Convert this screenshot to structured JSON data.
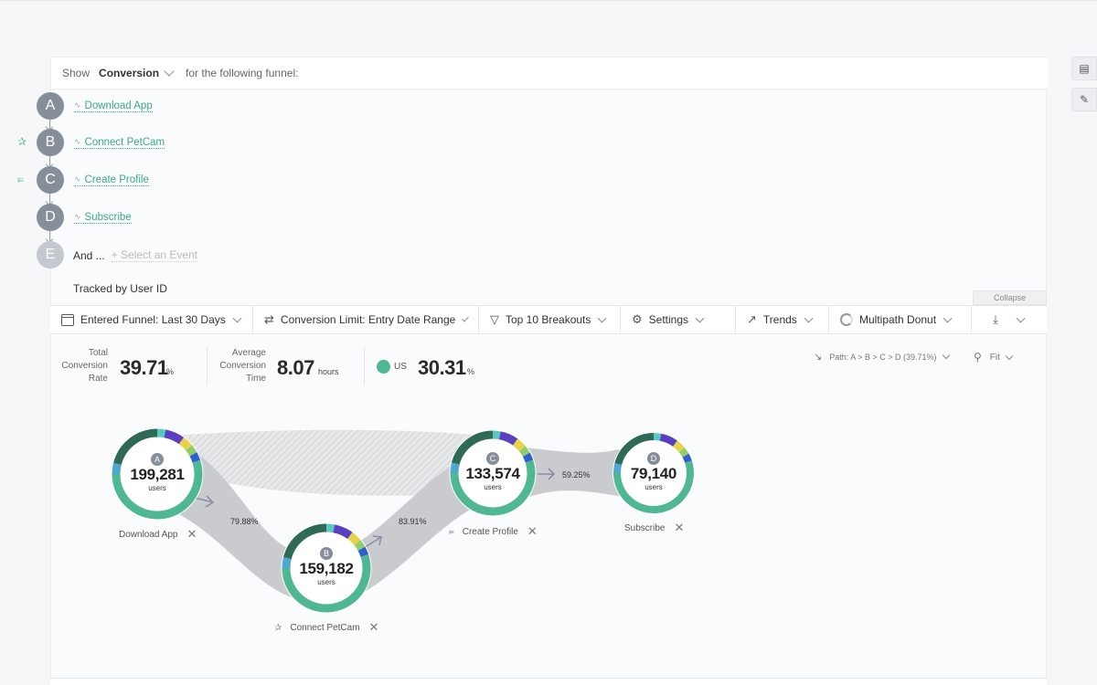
{
  "header": {
    "show_label": "Show",
    "metric": "Conversion",
    "tail": "for the following funnel:"
  },
  "steps": [
    {
      "letter": "A",
      "event": "Download App"
    },
    {
      "letter": "B",
      "event": "Connect PetCam"
    },
    {
      "letter": "C",
      "event": "Create Profile"
    },
    {
      "letter": "D",
      "event": "Subscribe"
    },
    {
      "letter": "E",
      "event": ""
    }
  ],
  "and_label": "And ...",
  "select_event": "+ Select an Event",
  "tracked_by": "Tracked by User ID",
  "collapse": "Collapse",
  "toolbar": {
    "date_range": "Entered Funnel: Last 30 Days",
    "conversion_limit": "Conversion Limit: Entry Date Range",
    "breakouts": "Top 10 Breakouts",
    "settings": "Settings",
    "trends": "Trends",
    "view": "Multipath Donut"
  },
  "stats": {
    "total_label": [
      "Total",
      "Conversion",
      "Rate"
    ],
    "total_value": "39.71",
    "total_unit": "%",
    "avg_label": [
      "Average",
      "Conversion",
      "Time"
    ],
    "avg_value": "8.07",
    "avg_unit": "hours",
    "segment_label": "US",
    "segment_value": "30.31",
    "segment_unit": "%",
    "segment_color": "#4fb892"
  },
  "path_control": "Path: A > B > C > D (39.71%)",
  "fit_control": "Fit",
  "nodes": [
    {
      "letter": "A",
      "users": "199,281",
      "unit": "users",
      "label": "Download App"
    },
    {
      "letter": "B",
      "users": "159,182",
      "unit": "users",
      "label": "Connect PetCam"
    },
    {
      "letter": "C",
      "users": "133,574",
      "unit": "users",
      "label": "Create Profile"
    },
    {
      "letter": "D",
      "users": "79,140",
      "unit": "users",
      "label": "Subscribe"
    }
  ],
  "conversions": [
    "79.88%",
    "83.91%",
    "59.25%"
  ],
  "colors": {
    "accent_green": "#4fb892",
    "dark_green": "#2e6a55",
    "purple": "#5a3fc0",
    "yellow": "#e8d24a",
    "blue": "#2f5fd0",
    "teal": "#5bc8c0",
    "step_gray": "#868e9a"
  }
}
